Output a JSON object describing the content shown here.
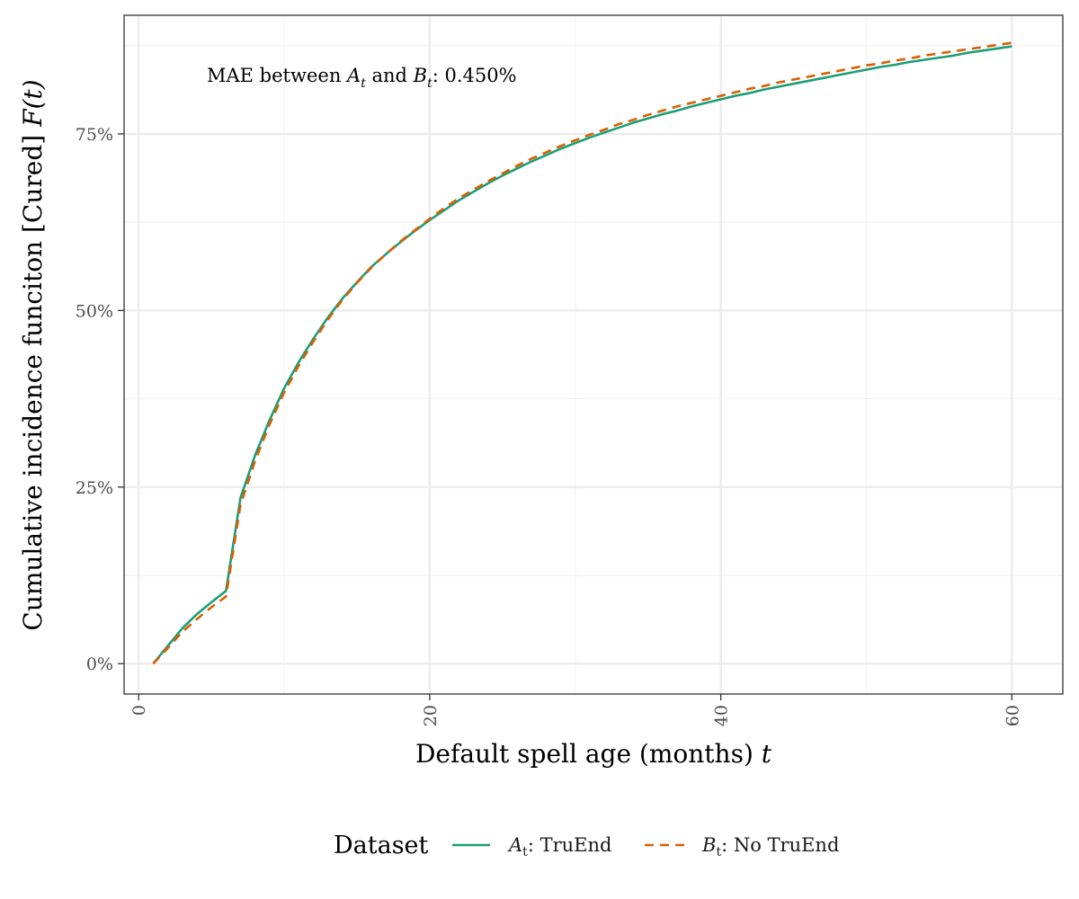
{
  "chart_data": {
    "type": "line",
    "xlabel": "Default spell age (months)",
    "xlabel_var": "t",
    "ylabel": "Cumulative incidence funciton [Cured]",
    "ylabel_var": "F(t)",
    "xlim": [
      -1,
      63.5
    ],
    "ylim": [
      -0.043,
      0.918
    ],
    "x_ticks": [
      0,
      20,
      40,
      60
    ],
    "y_ticks": [
      0,
      0.25,
      0.5,
      0.75
    ],
    "y_tick_labels": [
      "0%",
      "25%",
      "50%",
      "75%"
    ],
    "grid": true,
    "annotation": {
      "text_before": "MAE between ",
      "var_a": "A",
      "sub_a": "t",
      "text_and": " and ",
      "var_b": "B",
      "sub_b": "t",
      "text_after": ": 0.450%"
    },
    "legend": {
      "title": "Dataset",
      "placement": "bottom"
    },
    "series": [
      {
        "name": ": TruEnd",
        "var": "A",
        "sub": "t",
        "color": "#1b9e77",
        "dash": "solid",
        "x": [
          1,
          2,
          3,
          4,
          5,
          6,
          7,
          8,
          9,
          10,
          11,
          12,
          13,
          14,
          15,
          16,
          17,
          18,
          19,
          20,
          21,
          22,
          23,
          24,
          25,
          26,
          27,
          28,
          29,
          30,
          31,
          32,
          33,
          34,
          35,
          36,
          37,
          38,
          39,
          40,
          41,
          42,
          43,
          44,
          45,
          46,
          47,
          48,
          49,
          50,
          51,
          52,
          53,
          54,
          55,
          56,
          57,
          58,
          59,
          60
        ],
        "y": [
          0.0,
          0.025,
          0.05,
          0.07,
          0.087,
          0.103,
          0.235,
          0.295,
          0.345,
          0.39,
          0.427,
          0.46,
          0.49,
          0.517,
          0.54,
          0.562,
          0.58,
          0.597,
          0.613,
          0.628,
          0.642,
          0.656,
          0.668,
          0.68,
          0.691,
          0.701,
          0.711,
          0.72,
          0.729,
          0.737,
          0.745,
          0.752,
          0.759,
          0.766,
          0.772,
          0.778,
          0.783,
          0.789,
          0.794,
          0.799,
          0.804,
          0.808,
          0.813,
          0.817,
          0.821,
          0.825,
          0.829,
          0.833,
          0.837,
          0.841,
          0.845,
          0.848,
          0.852,
          0.855,
          0.858,
          0.861,
          0.865,
          0.868,
          0.871,
          0.874
        ]
      },
      {
        "name": ": No TruEnd",
        "var": "B",
        "sub": "t",
        "color": "#d95f02",
        "dash": "dashed",
        "x": [
          1,
          2,
          3,
          4,
          5,
          6,
          7,
          8,
          9,
          10,
          11,
          12,
          13,
          14,
          15,
          16,
          17,
          18,
          19,
          20,
          21,
          22,
          23,
          24,
          25,
          26,
          27,
          28,
          29,
          30,
          31,
          32,
          33,
          34,
          35,
          36,
          37,
          38,
          39,
          40,
          41,
          42,
          43,
          44,
          45,
          46,
          47,
          48,
          49,
          50,
          51,
          52,
          53,
          54,
          55,
          56,
          57,
          58,
          59,
          60
        ],
        "y": [
          0.0,
          0.022,
          0.045,
          0.063,
          0.08,
          0.095,
          0.225,
          0.287,
          0.339,
          0.384,
          0.422,
          0.456,
          0.487,
          0.515,
          0.539,
          0.561,
          0.58,
          0.598,
          0.614,
          0.63,
          0.645,
          0.659,
          0.671,
          0.683,
          0.694,
          0.705,
          0.715,
          0.724,
          0.733,
          0.741,
          0.749,
          0.756,
          0.764,
          0.77,
          0.777,
          0.783,
          0.789,
          0.794,
          0.799,
          0.804,
          0.809,
          0.814,
          0.818,
          0.823,
          0.827,
          0.831,
          0.835,
          0.839,
          0.843,
          0.847,
          0.85,
          0.854,
          0.857,
          0.861,
          0.864,
          0.867,
          0.87,
          0.873,
          0.876,
          0.879
        ]
      }
    ]
  }
}
